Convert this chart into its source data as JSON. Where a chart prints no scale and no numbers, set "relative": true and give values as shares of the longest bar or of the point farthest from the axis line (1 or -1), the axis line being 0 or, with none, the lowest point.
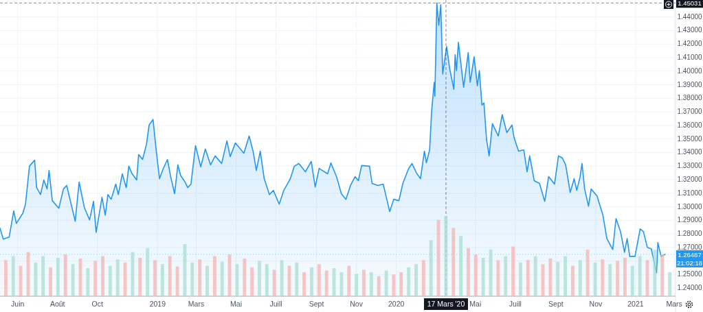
{
  "chart_data": [
    {
      "type": "area",
      "color": "#2196f3",
      "grid": true,
      "xlim": [
        "2018-05-05",
        "2021-03-03"
      ],
      "ylim": [
        1.234,
        1.4525
      ],
      "xticks": [
        {
          "value": "2018-06-01",
          "label": "Juin"
        },
        {
          "value": "2018-08-01",
          "label": "Août"
        },
        {
          "value": "2018-10-01",
          "label": "Oct"
        },
        {
          "value": "2019-01-01",
          "label": "2019"
        },
        {
          "value": "2019-03-01",
          "label": "Mars"
        },
        {
          "value": "2019-05-01",
          "label": "Mai"
        },
        {
          "value": "2019-07-01",
          "label": "Juill"
        },
        {
          "value": "2019-09-01",
          "label": "Sept"
        },
        {
          "value": "2019-11-01",
          "label": "Nov"
        },
        {
          "value": "2020-01-01",
          "label": "2020"
        },
        {
          "value": "2020-05-01",
          "label": "Mai"
        },
        {
          "value": "2020-07-01",
          "label": "Juill"
        },
        {
          "value": "2020-09-01",
          "label": "Sept"
        },
        {
          "value": "2020-11-01",
          "label": "Nov"
        },
        {
          "value": "2021-01-01",
          "label": "2021"
        },
        {
          "value": "2021-03-01",
          "label": "Mars"
        }
      ],
      "yticks": [
        {
          "value": 1.24,
          "label": "1.24000"
        },
        {
          "value": 1.25,
          "label": "1.25000"
        },
        {
          "value": 1.26,
          "label": null
        },
        {
          "value": 1.27,
          "label": "1.27000"
        },
        {
          "value": 1.28,
          "label": "1.28000"
        },
        {
          "value": 1.29,
          "label": "1.29000"
        },
        {
          "value": 1.3,
          "label": "1.30000"
        },
        {
          "value": 1.31,
          "label": "1.31000"
        },
        {
          "value": 1.32,
          "label": "1.32000"
        },
        {
          "value": 1.33,
          "label": "1.33000"
        },
        {
          "value": 1.34,
          "label": "1.34000"
        },
        {
          "value": 1.35,
          "label": "1.35000"
        },
        {
          "value": 1.36,
          "label": "1.36000"
        },
        {
          "value": 1.37,
          "label": "1.37000"
        },
        {
          "value": 1.38,
          "label": "1.38000"
        },
        {
          "value": 1.39,
          "label": "1.39000"
        },
        {
          "value": 1.4,
          "label": "1.40000"
        },
        {
          "value": 1.41,
          "label": "1.41000"
        },
        {
          "value": 1.42,
          "label": "1.42000"
        },
        {
          "value": 1.43,
          "label": "1.43000"
        },
        {
          "value": 1.44,
          "label": "1.44000"
        }
      ],
      "x": [
        "2018-05-05",
        "2018-05-10",
        "2018-05-19",
        "2018-05-26",
        "2018-05-30",
        "2018-06-09",
        "2018-06-13",
        "2018-06-19",
        "2018-06-27",
        "2018-06-30",
        "2018-07-06",
        "2018-07-11",
        "2018-07-16",
        "2018-07-19",
        "2018-07-24",
        "2018-08-03",
        "2018-08-10",
        "2018-08-15",
        "2018-08-28",
        "2018-09-03",
        "2018-09-11",
        "2018-09-19",
        "2018-09-25",
        "2018-09-29",
        "2018-10-08",
        "2018-10-13",
        "2018-10-17",
        "2018-10-22",
        "2018-10-29",
        "2018-11-02",
        "2018-11-08",
        "2018-11-14",
        "2018-11-18",
        "2018-11-23",
        "2018-11-30",
        "2018-12-03",
        "2018-12-09",
        "2018-12-15",
        "2018-12-19",
        "2018-12-25",
        "2018-12-30",
        "2019-01-04",
        "2019-01-09",
        "2019-01-16",
        "2019-01-21",
        "2019-01-27",
        "2019-02-01",
        "2019-02-05",
        "2019-02-12",
        "2019-02-16",
        "2019-02-21",
        "2019-02-28",
        "2019-03-08",
        "2019-03-15",
        "2019-03-23",
        "2019-03-30",
        "2019-04-09",
        "2019-04-17",
        "2019-04-22",
        "2019-04-30",
        "2019-05-13",
        "2019-05-21",
        "2019-05-27",
        "2019-06-01",
        "2019-06-07",
        "2019-06-13",
        "2019-06-21",
        "2019-06-27",
        "2019-07-06",
        "2019-07-13",
        "2019-07-23",
        "2019-07-29",
        "2019-08-05",
        "2019-08-15",
        "2019-08-24",
        "2019-08-30",
        "2019-09-05",
        "2019-09-18",
        "2019-09-23",
        "2019-10-02",
        "2019-10-09",
        "2019-10-16",
        "2019-10-23",
        "2019-10-30",
        "2019-11-04",
        "2019-11-09",
        "2019-11-21",
        "2019-11-25",
        "2019-12-04",
        "2019-12-12",
        "2019-12-17",
        "2019-12-22",
        "2019-12-28",
        "2020-01-05",
        "2020-01-11",
        "2020-01-20",
        "2020-01-25",
        "2020-02-01",
        "2020-02-07",
        "2020-02-13",
        "2020-02-16",
        "2020-02-21",
        "2020-02-24",
        "2020-02-28",
        "2020-02-29",
        "2020-03-03",
        "2020-03-06",
        "2020-03-09",
        "2020-03-12",
        "2020-03-18",
        "2020-03-23",
        "2020-03-29",
        "2020-03-31",
        "2020-04-02",
        "2020-04-05",
        "2020-04-13",
        "2020-04-20",
        "2020-04-23",
        "2020-04-29",
        "2020-05-04",
        "2020-05-07",
        "2020-05-11",
        "2020-05-14",
        "2020-05-18",
        "2020-05-22",
        "2020-05-27",
        "2020-06-05",
        "2020-06-11",
        "2020-06-18",
        "2020-06-26",
        "2020-06-29",
        "2020-07-06",
        "2020-07-14",
        "2020-07-19",
        "2020-07-23",
        "2020-07-30",
        "2020-08-07",
        "2020-08-15",
        "2020-08-21",
        "2020-08-30",
        "2020-09-05",
        "2020-09-11",
        "2020-09-16",
        "2020-09-23",
        "2020-09-29",
        "2020-10-03",
        "2020-10-08",
        "2020-10-11",
        "2020-10-15",
        "2020-10-21",
        "2020-10-25",
        "2020-11-03",
        "2020-11-12",
        "2020-11-18",
        "2020-11-27",
        "2020-12-02",
        "2020-12-09",
        "2020-12-15",
        "2020-12-19",
        "2020-12-23",
        "2020-12-31",
        "2021-01-08",
        "2021-01-13",
        "2021-01-19",
        "2021-01-25",
        "2021-02-02",
        "2021-02-04",
        "2021-02-09",
        "2021-02-15"
      ],
      "values": [
        1.2842,
        1.2761,
        1.2776,
        1.2969,
        1.2877,
        1.2953,
        1.3019,
        1.3299,
        1.3344,
        1.3141,
        1.309,
        1.3197,
        1.3131,
        1.3268,
        1.3045,
        1.2989,
        1.3131,
        1.3157,
        1.2893,
        1.3182,
        1.2994,
        1.2903,
        1.304,
        1.2811,
        1.307,
        1.2938,
        1.309,
        1.3055,
        1.3167,
        1.309,
        1.3243,
        1.3141,
        1.3299,
        1.3243,
        1.3197,
        1.3385,
        1.3349,
        1.3461,
        1.3603,
        1.3644,
        1.341,
        1.3207,
        1.3273,
        1.3349,
        1.3222,
        1.3096,
        1.3309,
        1.3233,
        1.3182,
        1.3141,
        1.3167,
        1.3451,
        1.3294,
        1.3426,
        1.3309,
        1.3375,
        1.3319,
        1.3486,
        1.337,
        1.3471,
        1.3395,
        1.3522,
        1.341,
        1.3268,
        1.341,
        1.3207,
        1.309,
        1.3121,
        1.3019,
        1.3121,
        1.3207,
        1.3299,
        1.3319,
        1.3258,
        1.3334,
        1.3146,
        1.3283,
        1.3243,
        1.3324,
        1.3217,
        1.3096,
        1.3055,
        1.3157,
        1.3222,
        1.3192,
        1.3304,
        1.3299,
        1.3172,
        1.3157,
        1.3167,
        1.3065,
        1.2964,
        1.3055,
        1.3045,
        1.3172,
        1.3283,
        1.3319,
        1.3248,
        1.3207,
        1.341,
        1.3324,
        1.342,
        1.37,
        1.3918,
        1.3816,
        1.4503,
        1.4339,
        1.4491,
        1.3979,
        1.4182,
        1.4009,
        1.3867,
        1.4121,
        1.4004,
        1.4212,
        1.3882,
        1.4136,
        1.3918,
        1.4106,
        1.3892,
        1.4004,
        1.375,
        1.3766,
        1.3497,
        1.3375,
        1.3613,
        1.3522,
        1.3679,
        1.3547,
        1.3603,
        1.3512,
        1.341,
        1.342,
        1.3258,
        1.3375,
        1.3192,
        1.3172,
        1.304,
        1.3222,
        1.3167,
        1.3375,
        1.336,
        1.3309,
        1.3106,
        1.3207,
        1.3121,
        1.3218,
        1.3319,
        1.3131,
        1.3004,
        1.3131,
        1.308,
        1.2938,
        1.2766,
        1.2684,
        1.2913,
        1.2816,
        1.2664,
        1.2766,
        1.2634,
        1.2634,
        1.2837,
        1.2816,
        1.27,
        1.2689,
        1.2512,
        1.2735,
        1.2634,
        1.2649
      ],
      "ref_lines": [
        {
          "axis": "y",
          "value": 1.45031,
          "label": "1.45031",
          "color": "#131722",
          "line_style": "dashed"
        },
        {
          "axis": "y",
          "value": 1.26487,
          "label": "1.26487",
          "color": "#2196f3",
          "line_style": "dotted"
        },
        {
          "axis": "x",
          "value": "2020-03-17",
          "label": "17 Mars '20",
          "color": "#131722",
          "line_style": "dashed"
        }
      ],
      "annotations": [
        "21:02:18"
      ]
    },
    {
      "type": "bar",
      "relative": true,
      "categories": [
        null,
        null,
        null,
        null,
        null,
        null,
        null,
        null,
        null,
        null,
        null,
        null,
        null,
        null,
        null,
        null,
        null,
        null,
        null,
        null,
        null,
        null,
        null,
        null,
        null,
        null,
        null,
        null,
        null,
        null,
        null,
        null,
        null,
        null,
        null,
        null,
        null,
        null,
        null,
        null,
        null,
        null,
        null,
        null,
        null,
        null,
        null,
        null,
        null,
        null,
        null,
        null,
        null,
        null,
        null,
        null,
        null,
        null,
        null,
        null,
        null,
        null,
        null,
        null,
        null,
        null,
        null,
        null,
        null,
        null,
        null,
        null,
        null,
        null,
        null,
        null,
        null,
        null,
        null,
        null,
        null,
        null,
        null,
        null,
        null,
        null,
        null,
        null,
        null,
        null
      ],
      "values": [
        0.45,
        0.5,
        0.38,
        0.55,
        0.42,
        0.5,
        0.36,
        0.48,
        0.52,
        0.4,
        0.47,
        0.35,
        0.44,
        0.5,
        0.38,
        0.46,
        0.42,
        0.55,
        0.48,
        0.6,
        0.45,
        0.4,
        0.5,
        0.37,
        0.65,
        0.42,
        0.46,
        0.38,
        0.5,
        0.43,
        0.52,
        0.4,
        0.47,
        0.36,
        0.44,
        0.4,
        0.33,
        0.45,
        0.38,
        0.42,
        0.3,
        0.36,
        0.4,
        0.32,
        0.35,
        0.3,
        0.38,
        0.28,
        0.33,
        0.3,
        0.25,
        0.32,
        0.27,
        0.3,
        0.36,
        0.4,
        0.45,
        0.7,
        0.95,
        1.0,
        0.85,
        0.75,
        0.6,
        0.52,
        0.48,
        0.58,
        0.45,
        0.5,
        0.62,
        0.42,
        0.45,
        0.5,
        0.4,
        0.47,
        0.43,
        0.5,
        0.38,
        0.45,
        0.58,
        0.42,
        0.46,
        0.4,
        0.44,
        0.48,
        0.38,
        0.5,
        0.45,
        0.58,
        0.52,
        0.3
      ],
      "colors": [
        "#f5b3b0",
        "#a8ddd2",
        "#f5b3b0",
        "#f5b3b0",
        "#a8ddd2",
        "#a8ddd2",
        "#f5b3b0",
        "#a8ddd2",
        "#f5b3b0",
        "#a8ddd2",
        "#f5b3b0",
        "#a8ddd2",
        "#f5b3b0",
        "#f5b3b0",
        "#a8ddd2",
        "#a8ddd2",
        "#f5b3b0",
        "#a8ddd2",
        "#f5b3b0",
        "#a8ddd2",
        "#f5b3b0",
        "#a8ddd2",
        "#f5b3b0",
        "#f5b3b0",
        "#a8ddd2",
        "#a8ddd2",
        "#f5b3b0",
        "#a8ddd2",
        "#f5b3b0",
        "#a8ddd2",
        "#f5b3b0",
        "#a8ddd2",
        "#f5b3b0",
        "#f5b3b0",
        "#a8ddd2",
        "#a8ddd2",
        "#f5b3b0",
        "#a8ddd2",
        "#f5b3b0",
        "#a8ddd2",
        "#f5b3b0",
        "#a8ddd2",
        "#f5b3b0",
        "#f5b3b0",
        "#a8ddd2",
        "#a8ddd2",
        "#f5b3b0",
        "#a8ddd2",
        "#f5b3b0",
        "#a8ddd2",
        "#f5b3b0",
        "#a8ddd2",
        "#f5b3b0",
        "#f5b3b0",
        "#a8ddd2",
        "#a8ddd2",
        "#f5b3b0",
        "#a8ddd2",
        "#f5b3b0",
        "#a8ddd2",
        "#f5b3b0",
        "#a8ddd2",
        "#f5b3b0",
        "#f5b3b0",
        "#a8ddd2",
        "#a8ddd2",
        "#f5b3b0",
        "#a8ddd2",
        "#f5b3b0",
        "#a8ddd2",
        "#f5b3b0",
        "#a8ddd2",
        "#f5b3b0",
        "#f5b3b0",
        "#a8ddd2",
        "#a8ddd2",
        "#f5b3b0",
        "#a8ddd2",
        "#f5b3b0",
        "#a8ddd2",
        "#f5b3b0",
        "#a8ddd2",
        "#f5b3b0",
        "#f5b3b0",
        "#a8ddd2",
        "#a8ddd2",
        "#f5b3b0",
        "#a8ddd2",
        "#f5b3b0",
        "#a8ddd2"
      ]
    }
  ]
}
